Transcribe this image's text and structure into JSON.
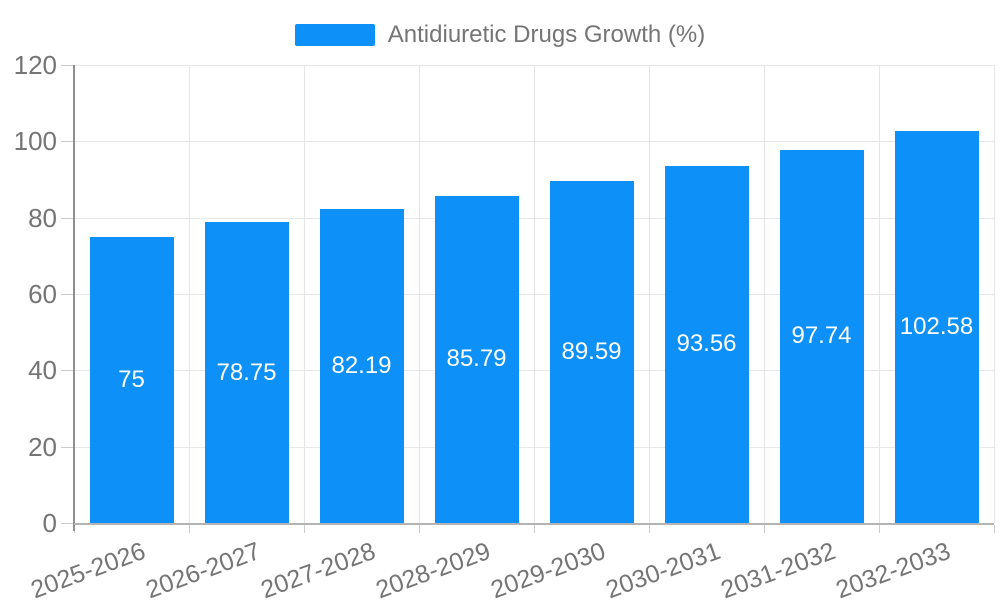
{
  "chart_data": {
    "type": "bar",
    "title": "Antidiuretic Drugs Growth (%)",
    "categories": [
      "2025-2026",
      "2026-2027",
      "2027-2028",
      "2028-2029",
      "2029-2030",
      "2030-2031",
      "2031-2032",
      "2032-2033"
    ],
    "values": [
      75,
      78.75,
      82.19,
      85.79,
      89.59,
      93.56,
      97.74,
      102.58
    ],
    "value_labels": [
      "75",
      "78.75",
      "82.19",
      "85.79",
      "89.59",
      "93.56",
      "97.74",
      "102.58"
    ],
    "xlabel": "",
    "ylabel": "",
    "ylim": [
      0,
      120
    ],
    "yticks": [
      0,
      20,
      40,
      60,
      80,
      100,
      120
    ],
    "grid": true,
    "legend_position": "top-center",
    "x_label_rotation": -20,
    "bar_color": "#0d90f8",
    "bar_label_color": "#ffffff"
  },
  "palette": {
    "accent_blue": "#0d90f8",
    "text_gray": "#757575",
    "grid_gray": "#e8e8e8",
    "y_axis_gray": "#8f8f8f",
    "x_axis_gray": "#b3b3b3",
    "tick_gray": "#cccccc",
    "background": "#ffffff"
  }
}
